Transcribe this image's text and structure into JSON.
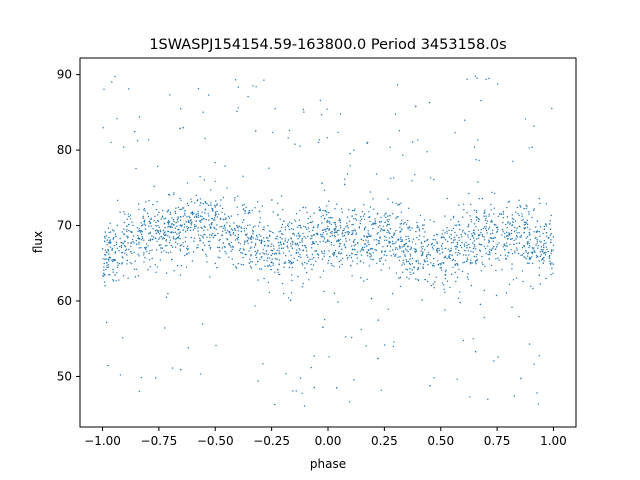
{
  "chart_data": {
    "type": "scatter",
    "title": "1SWASPJ154154.59-163800.0 Period 3453158.0s",
    "xlabel": "phase",
    "ylabel": "flux",
    "xlim": [
      -1.1,
      1.1
    ],
    "ylim": [
      43.3,
      92.2
    ],
    "xticks": [
      -1.0,
      -0.75,
      -0.5,
      -0.25,
      0.0,
      0.25,
      0.5,
      0.75,
      1.0
    ],
    "xtick_labels": [
      "−1.00",
      "−0.75",
      "−0.50",
      "−0.25",
      "0.00",
      "0.25",
      "0.50",
      "0.75",
      "1.00"
    ],
    "yticks": [
      50,
      60,
      70,
      80,
      90
    ],
    "ytick_labels": [
      "50",
      "60",
      "70",
      "80",
      "90"
    ],
    "grid": false,
    "legend": "none",
    "series_color": "#1f77b4",
    "phase_range": [
      -1.0,
      1.0
    ],
    "flux_core_range": [
      62,
      74
    ],
    "flux_extreme_range": [
      46,
      90
    ],
    "mean_flux_profile": {
      "x": [
        -1.0,
        -0.9,
        -0.8,
        -0.7,
        -0.6,
        -0.5,
        -0.4,
        -0.3,
        -0.2,
        -0.1,
        0.0,
        0.1,
        0.2,
        0.3,
        0.4,
        0.5,
        0.6,
        0.7,
        0.8,
        0.9,
        1.0
      ],
      "y": [
        66,
        67.5,
        69,
        69.5,
        70,
        69.5,
        69,
        67.5,
        67,
        68,
        69,
        68.5,
        68.5,
        68,
        66.5,
        66,
        67.5,
        69,
        69,
        68.5,
        67
      ]
    }
  }
}
